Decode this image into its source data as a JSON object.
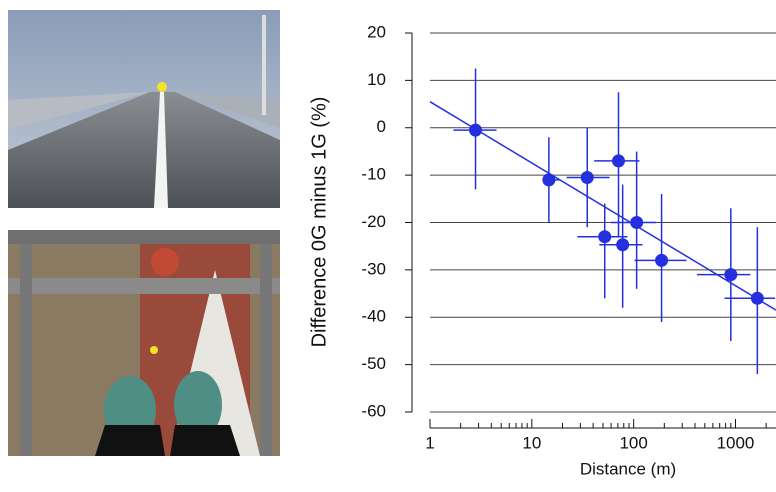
{
  "chart_data": {
    "type": "scatter",
    "x_label": "Distance (m)",
    "y_label": "Difference 0G minus 1G (%)",
    "x": [
      2.8,
      14.7,
      35,
      71,
      52,
      78,
      107,
      188,
      900,
      1640
    ],
    "values": [
      -0.5,
      -11,
      -10.5,
      -7,
      -23,
      -24.7,
      -20,
      -28,
      -31,
      -36
    ],
    "x_lo": [
      1.7,
      13,
      22,
      41,
      28,
      46,
      60,
      102,
      420,
      780
    ],
    "x_hi": [
      4.5,
      19,
      58,
      114,
      87,
      122,
      167,
      330,
      1400,
      2450
    ],
    "y_lo": [
      -13,
      -20,
      -21,
      -23,
      -36,
      -38,
      -34,
      -41,
      -45,
      -52
    ],
    "y_hi": [
      12.5,
      -2,
      0,
      7.5,
      -16,
      -12,
      -5,
      -14,
      -17,
      -21
    ],
    "fit_line": {
      "x": [
        1,
        2500
      ],
      "y": [
        5.5,
        -38.5
      ]
    },
    "color": "#2430e0",
    "xlim": [
      1,
      2500
    ],
    "ylim": [
      -60,
      20
    ],
    "log_x": true,
    "xticks": [
      1,
      10,
      100,
      1000
    ],
    "xminorticks": [
      2,
      3,
      4,
      5,
      6,
      7,
      8,
      9,
      20,
      30,
      40,
      50,
      60,
      70,
      80,
      90,
      200,
      300,
      400,
      500,
      600,
      700,
      800,
      900,
      2000
    ],
    "yticks": [
      -60,
      -50,
      -40,
      -30,
      -20,
      -10,
      0,
      10,
      20
    ],
    "grid": true
  }
}
